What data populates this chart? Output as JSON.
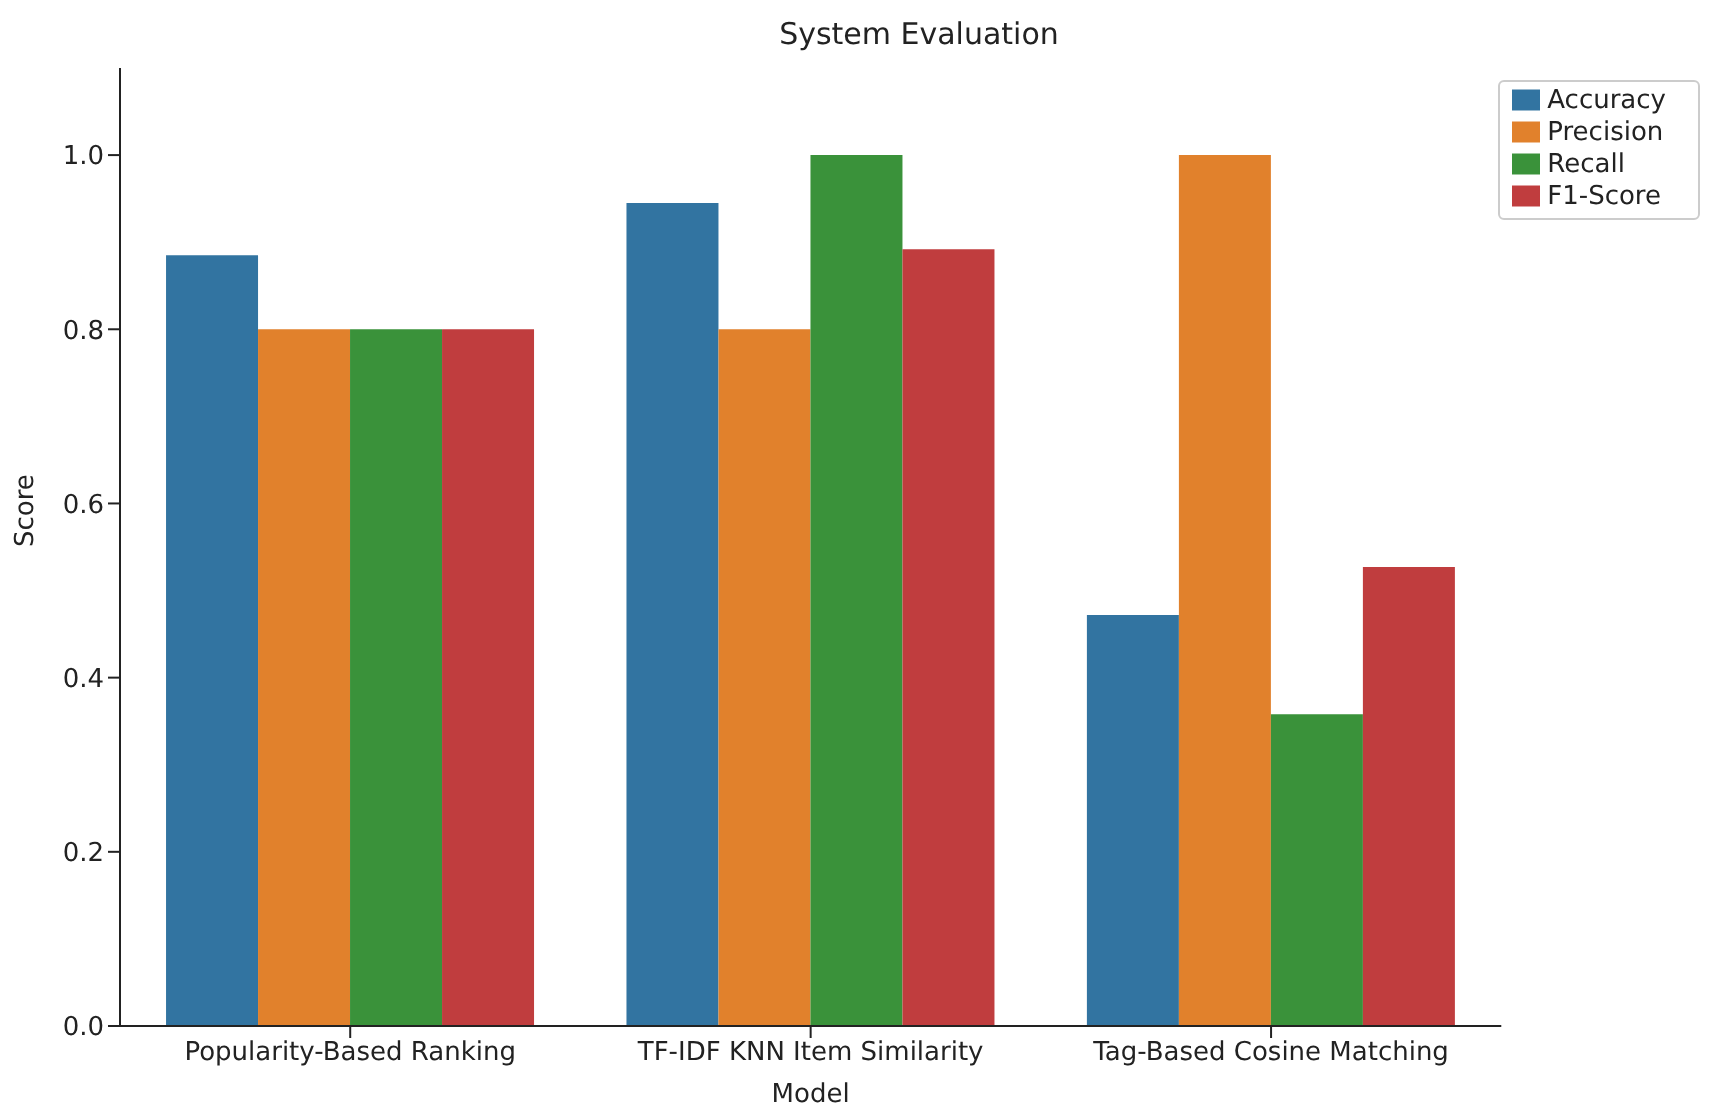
{
  "chart_data": {
    "type": "bar",
    "title": "System Evaluation",
    "xlabel": "Model",
    "ylabel": "Score",
    "categories": [
      "Popularity-Based Ranking",
      "TF-IDF KNN Item Similarity",
      "Tag-Based Cosine Matching"
    ],
    "series": [
      {
        "name": "Accuracy",
        "color": "#3274a1",
        "values": [
          0.885,
          0.945,
          0.472
        ]
      },
      {
        "name": "Precision",
        "color": "#e1812c",
        "values": [
          0.8,
          0.8,
          1.0
        ]
      },
      {
        "name": "Recall",
        "color": "#3a923a",
        "values": [
          0.8,
          1.0,
          0.358
        ]
      },
      {
        "name": "F1-Score",
        "color": "#c03d3e",
        "values": [
          0.8,
          0.892,
          0.527
        ]
      }
    ],
    "ylim": [
      0,
      1.1
    ],
    "yticks": [
      {
        "value": 0,
        "label": "0.0"
      },
      0.2,
      0.4,
      0.6,
      0.8,
      {
        "value": 1,
        "label": "1.0"
      }
    ],
    "grid": false,
    "legend": "top right"
  }
}
